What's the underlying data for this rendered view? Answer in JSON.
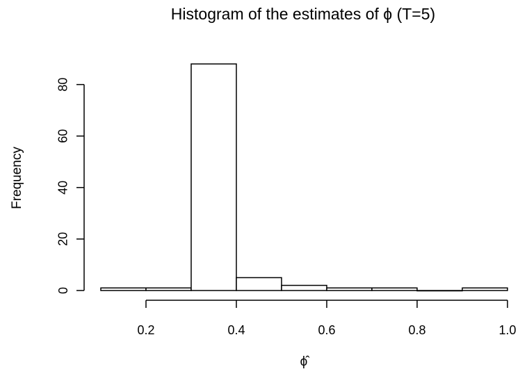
{
  "chart_data": {
    "type": "bar",
    "title": "Histogram of the estimates of ϕ (T=5)",
    "xlabel": "ϕ̂",
    "ylabel": "Frequency",
    "bins": [
      {
        "start": 0.1,
        "end": 0.2,
        "value": 1
      },
      {
        "start": 0.2,
        "end": 0.3,
        "value": 1
      },
      {
        "start": 0.3,
        "end": 0.4,
        "value": 88
      },
      {
        "start": 0.4,
        "end": 0.5,
        "value": 5
      },
      {
        "start": 0.5,
        "end": 0.6,
        "value": 2
      },
      {
        "start": 0.6,
        "end": 0.7,
        "value": 1
      },
      {
        "start": 0.7,
        "end": 0.8,
        "value": 1
      },
      {
        "start": 0.8,
        "end": 0.9,
        "value": 0
      },
      {
        "start": 0.9,
        "end": 1.0,
        "value": 1
      }
    ],
    "xlim": [
      0.1,
      1.0
    ],
    "ylim": [
      0,
      88
    ],
    "x_ticks": [
      "0.2",
      "0.4",
      "0.6",
      "0.8",
      "1.0"
    ],
    "y_ticks": [
      "0",
      "20",
      "40",
      "60",
      "80"
    ],
    "grid": false,
    "colors": {
      "bar_fill": "#ffffff",
      "bar_stroke": "#000000",
      "axis": "#000000",
      "text": "#000000"
    }
  }
}
